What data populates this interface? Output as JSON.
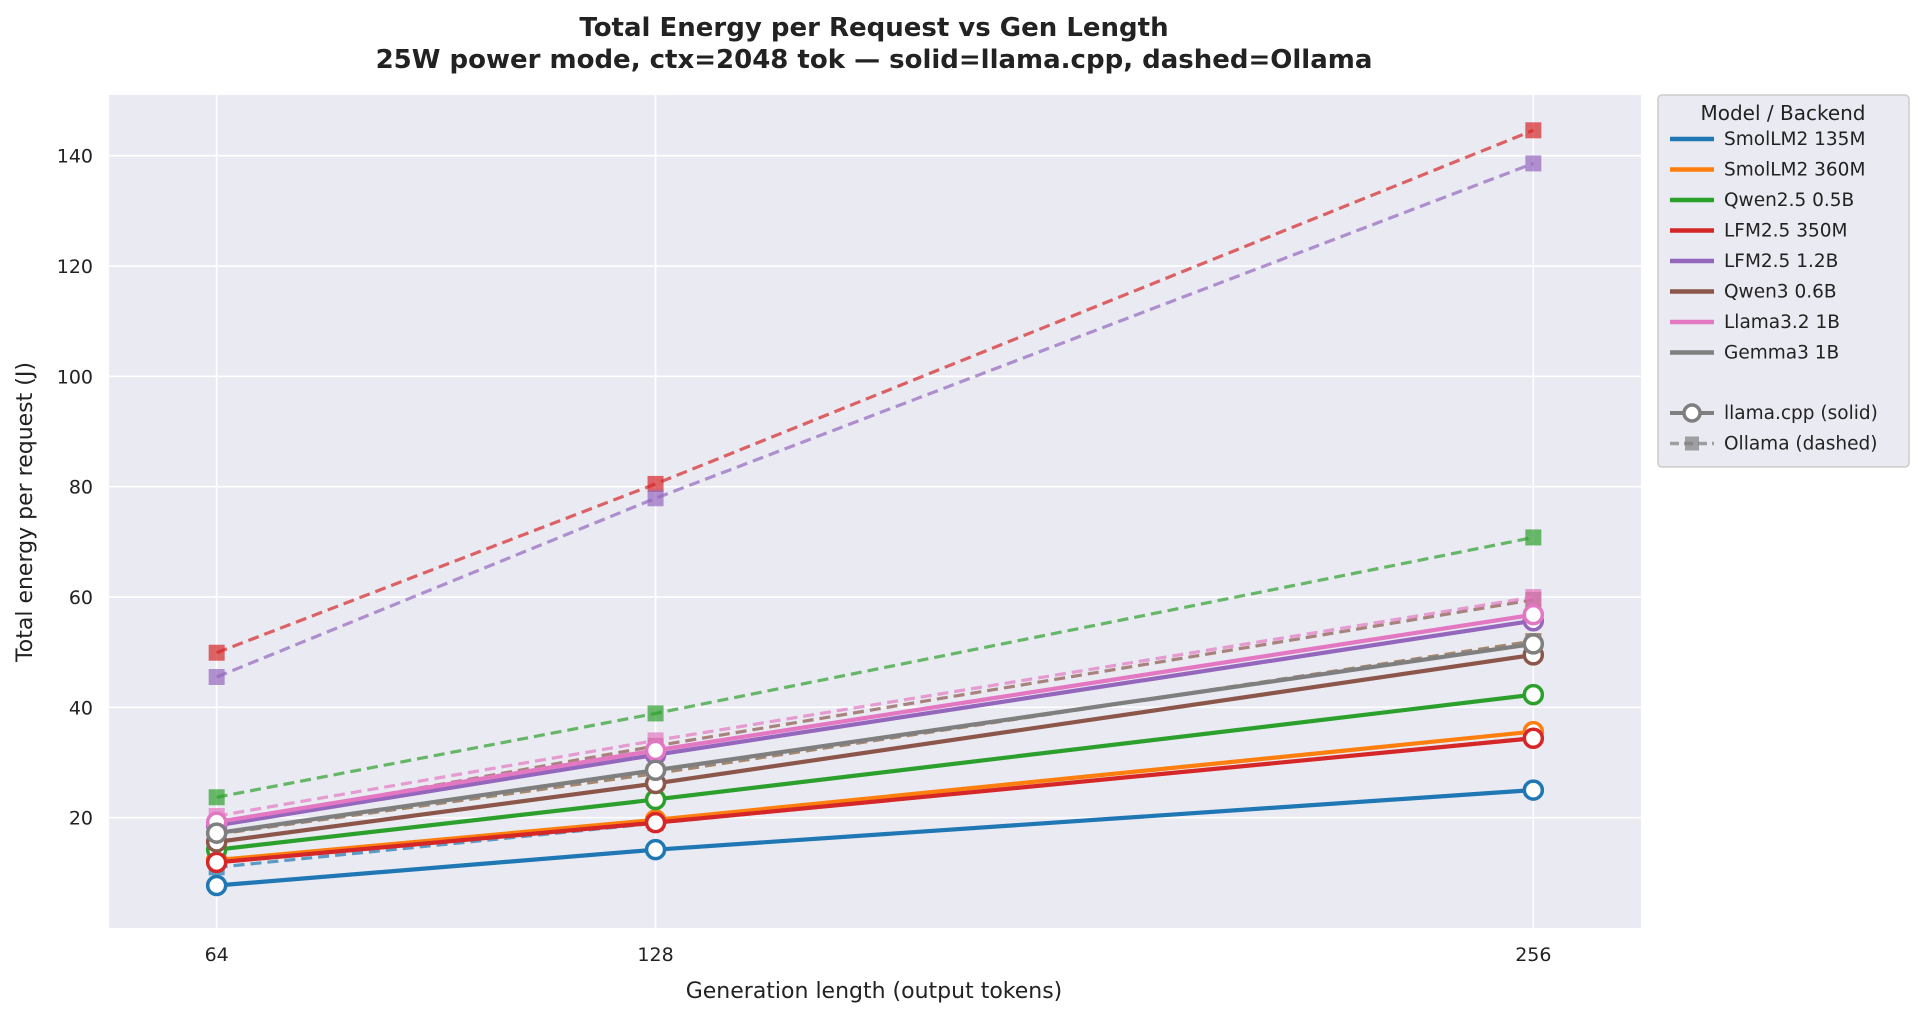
{
  "chart_data": {
    "type": "line",
    "title": "Total Energy per Request vs Gen Length",
    "subtitle": "25W power mode, ctx=2048 tok — solid=llama.cpp, dashed=Ollama",
    "xlabel": "Generation length (output tokens)",
    "ylabel": "Total energy per request (J)",
    "x": [
      64,
      128,
      256
    ],
    "x_ticks": [
      "64",
      "128",
      "256"
    ],
    "y_ticks": [
      "20",
      "40",
      "60",
      "80",
      "100",
      "120",
      "140"
    ],
    "xlim": [
      48.3,
      271.7
    ],
    "ylim": [
      0,
      151
    ],
    "grid": true,
    "legend_position": "outside-right",
    "legend": {
      "title": "Model / Backend",
      "backend_entries": [
        {
          "label": "llama.cpp (solid)",
          "style": "solid",
          "marker": "circle"
        },
        {
          "label": "Ollama (dashed)",
          "style": "dashed",
          "marker": "square"
        }
      ]
    },
    "series": [
      {
        "name": "SmolLM2 135M",
        "color": "#1f77b4",
        "llama_cpp": [
          7.7,
          14.2,
          25.0
        ],
        "ollama": [
          11.0,
          19.0,
          34.5
        ]
      },
      {
        "name": "SmolLM2 360M",
        "color": "#ff7f0e",
        "llama_cpp": [
          12.3,
          19.6,
          35.6
        ],
        "ollama": [
          17.0,
          28.0,
          52.0
        ]
      },
      {
        "name": "Qwen2.5 0.5B",
        "color": "#2ca02c",
        "llama_cpp": [
          14.2,
          23.3,
          42.3
        ],
        "ollama": [
          23.7,
          38.9,
          70.8
        ]
      },
      {
        "name": "LFM2.5 350M",
        "color": "#d62728",
        "llama_cpp": [
          11.9,
          19.1,
          34.4
        ],
        "ollama": [
          49.9,
          80.5,
          144.6
        ]
      },
      {
        "name": "LFM2.5 1.2B",
        "color": "#9467bd",
        "llama_cpp": [
          18.6,
          31.4,
          55.7
        ],
        "ollama": [
          45.5,
          77.9,
          138.6
        ]
      },
      {
        "name": "Qwen3 0.6B",
        "color": "#8c564b",
        "llama_cpp": [
          15.6,
          26.2,
          49.5
        ],
        "ollama": [
          18.8,
          33.0,
          59.5
        ]
      },
      {
        "name": "Llama3.2 1B",
        "color": "#e377c2",
        "llama_cpp": [
          19.2,
          32.2,
          56.8
        ],
        "ollama": [
          20.3,
          34.0,
          60.0
        ]
      },
      {
        "name": "Gemma3 1B",
        "color": "#7f7f7f",
        "llama_cpp": [
          17.2,
          28.6,
          51.5
        ],
        "ollama": [
          17.0,
          28.0,
          52.0
        ]
      }
    ]
  }
}
